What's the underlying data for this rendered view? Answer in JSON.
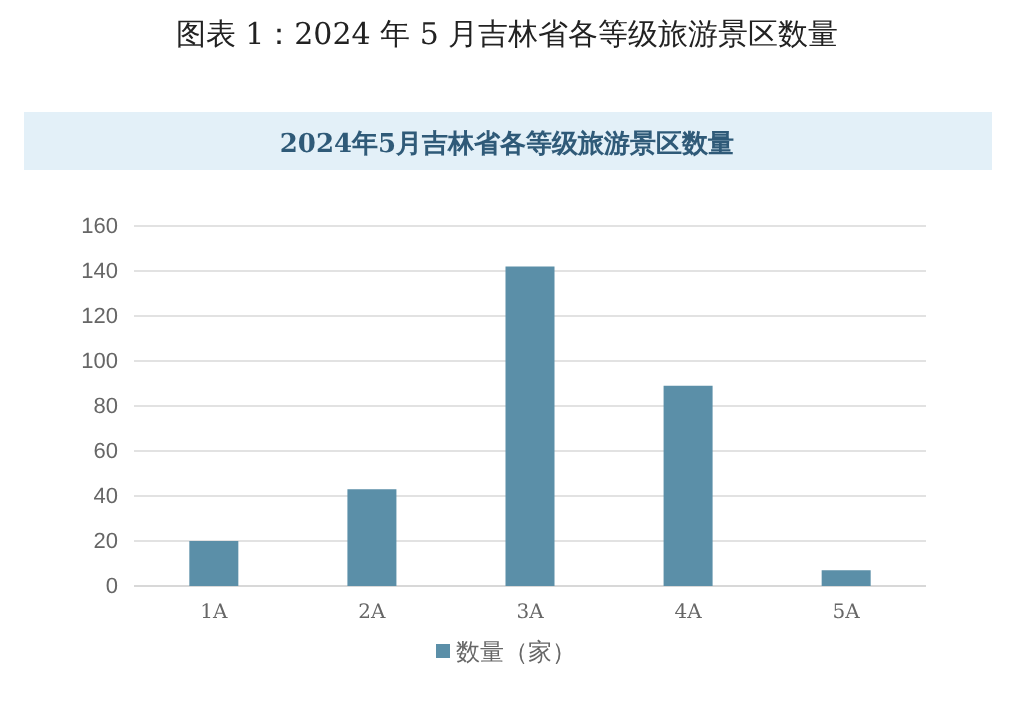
{
  "chart_data": {
    "type": "bar",
    "title": "图表 1：2024 年 5 月吉林省各等级旅游景区数量",
    "subtitle": "2024年5月吉林省各等级旅游景区数量",
    "categories": [
      "1A",
      "2A",
      "3A",
      "4A",
      "5A"
    ],
    "series": [
      {
        "name": "数量（家）",
        "color": "#5b8fa8",
        "values": [
          20,
          43,
          142,
          89,
          7
        ]
      }
    ],
    "ylim": [
      0,
      160
    ],
    "yticks": [
      0,
      20,
      40,
      60,
      80,
      100,
      120,
      140,
      160
    ],
    "grid": "y",
    "legend": "bottom"
  }
}
